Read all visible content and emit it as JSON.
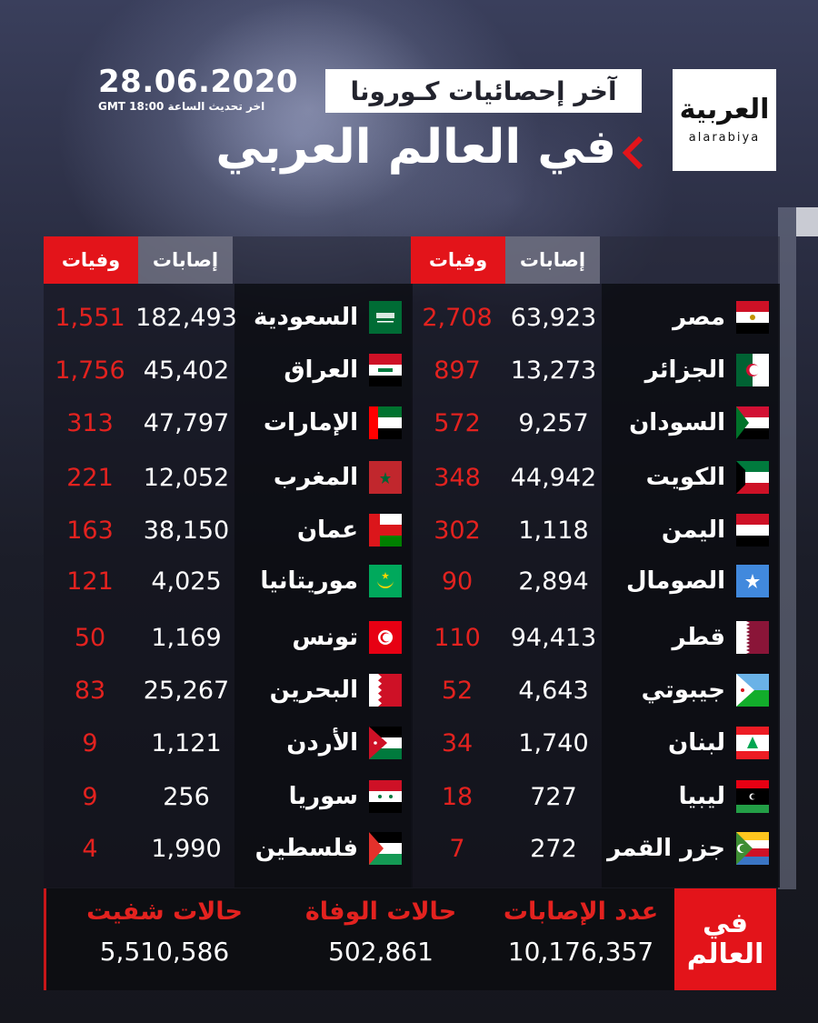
{
  "header": {
    "date": "28.06.2020",
    "update_note": "اخر تحديث الساعة GMT 18:00",
    "subtitle": "آخر إحصائيات كـورونا",
    "title": "في العالم العربي",
    "logo": {
      "arabic": "العربية",
      "latin": "alarabiya"
    }
  },
  "colors": {
    "accent_red": "#e3141a",
    "deaths_text": "#e3221f",
    "cases_header": "#6e7080",
    "background": "#181a24"
  },
  "columns": {
    "cases_label": "إصابات",
    "deaths_label": "وفيات"
  },
  "right_table": [
    {
      "country": "مصر",
      "flag": "egypt",
      "cases": "63,923",
      "deaths": "2,708"
    },
    {
      "country": "الجزائر",
      "flag": "algeria",
      "cases": "13,273",
      "deaths": "897"
    },
    {
      "country": "السودان",
      "flag": "sudan",
      "cases": "9,257",
      "deaths": "572"
    },
    {
      "country": "الكويت",
      "flag": "kuwait",
      "cases": "44,942",
      "deaths": "348"
    },
    {
      "country": "اليمن",
      "flag": "yemen",
      "cases": "1,118",
      "deaths": "302"
    },
    {
      "country": "الصومال",
      "flag": "somalia",
      "cases": "2,894",
      "deaths": "90"
    },
    {
      "country": "قطر",
      "flag": "qatar",
      "cases": "94,413",
      "deaths": "110"
    },
    {
      "country": "جيبوتي",
      "flag": "djibouti",
      "cases": "4,643",
      "deaths": "52"
    },
    {
      "country": "لبنان",
      "flag": "lebanon",
      "cases": "1,740",
      "deaths": "34"
    },
    {
      "country": "ليبيا",
      "flag": "libya",
      "cases": "727",
      "deaths": "18"
    },
    {
      "country": "جزر القمر",
      "flag": "comoros",
      "cases": "272",
      "deaths": "7"
    }
  ],
  "left_table": [
    {
      "country": "السعودية",
      "flag": "saudi-arabia",
      "cases": "182,493",
      "deaths": "1,551"
    },
    {
      "country": "العراق",
      "flag": "iraq",
      "cases": "45,402",
      "deaths": "1,756"
    },
    {
      "country": "الإمارات",
      "flag": "uae",
      "cases": "47,797",
      "deaths": "313"
    },
    {
      "country": "المغرب",
      "flag": "morocco",
      "cases": "12,052",
      "deaths": "221"
    },
    {
      "country": "عمان",
      "flag": "oman",
      "cases": "38,150",
      "deaths": "163"
    },
    {
      "country": "موريتانيا",
      "flag": "mauritania",
      "cases": "4,025",
      "deaths": "121"
    },
    {
      "country": "تونس",
      "flag": "tunisia",
      "cases": "1,169",
      "deaths": "50"
    },
    {
      "country": "البحرين",
      "flag": "bahrain",
      "cases": "25,267",
      "deaths": "83"
    },
    {
      "country": "الأردن",
      "flag": "jordan",
      "cases": "1,121",
      "deaths": "9"
    },
    {
      "country": "سوريا",
      "flag": "syria",
      "cases": "256",
      "deaths": "9"
    },
    {
      "country": "فلسطين",
      "flag": "palestine",
      "cases": "1,990",
      "deaths": "4"
    }
  ],
  "world": {
    "badge_line1": "في",
    "badge_line2": "العالم",
    "cases_label": "عدد الإصابات",
    "cases_value": "10,176,357",
    "deaths_label": "حالات الوفاة",
    "deaths_value": "502,861",
    "recovered_label": "حالات شفيت",
    "recovered_value": "5,510,586"
  }
}
